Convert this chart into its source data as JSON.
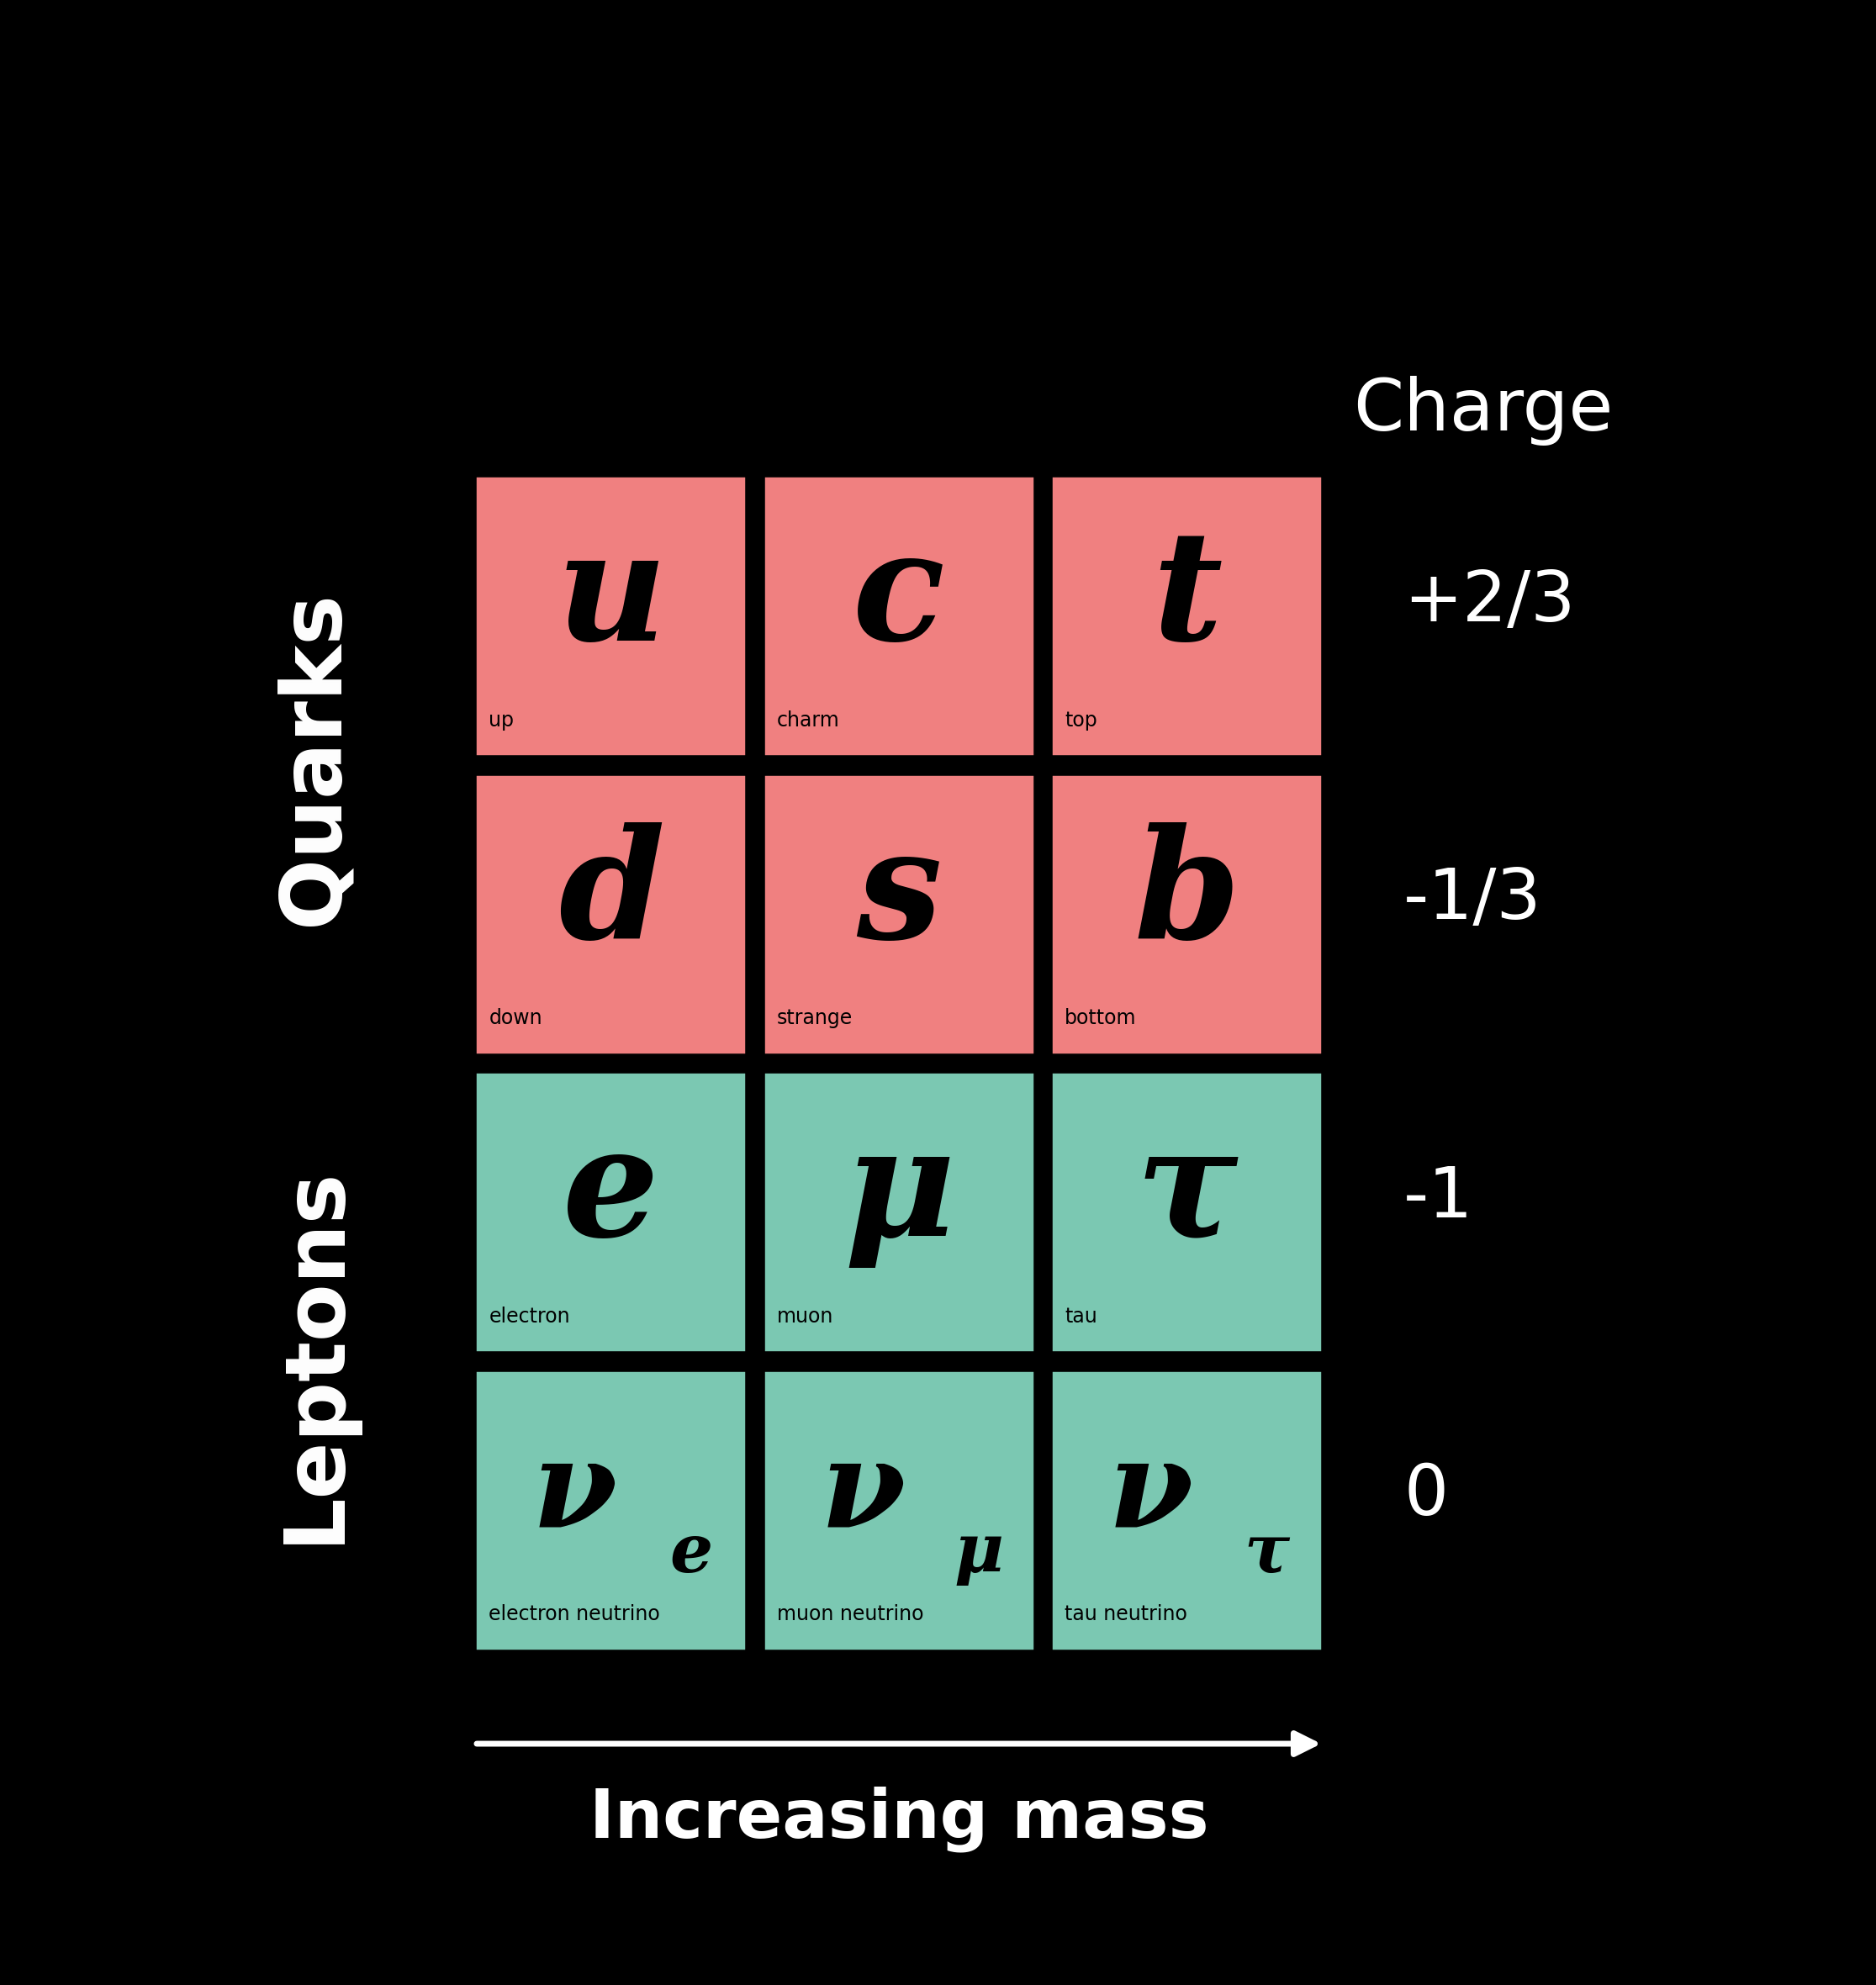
{
  "background_color": "#000000",
  "quark_color": "#F08080",
  "lepton_color": "#7BC8B2",
  "text_color_white": "#FFFFFF",
  "text_color_black": "#000000",
  "particles": [
    {
      "row": 0,
      "col": 0,
      "symbol": "u",
      "name": "up",
      "group": "quark"
    },
    {
      "row": 0,
      "col": 1,
      "symbol": "c",
      "name": "charm",
      "group": "quark"
    },
    {
      "row": 0,
      "col": 2,
      "symbol": "t",
      "name": "top",
      "group": "quark"
    },
    {
      "row": 1,
      "col": 0,
      "symbol": "d",
      "name": "down",
      "group": "quark"
    },
    {
      "row": 1,
      "col": 1,
      "symbol": "s",
      "name": "strange",
      "group": "quark"
    },
    {
      "row": 1,
      "col": 2,
      "symbol": "b",
      "name": "bottom",
      "group": "quark"
    },
    {
      "row": 2,
      "col": 0,
      "symbol": "e",
      "name": "electron",
      "group": "lepton"
    },
    {
      "row": 2,
      "col": 1,
      "symbol": "μ",
      "name": "muon",
      "group": "lepton"
    },
    {
      "row": 2,
      "col": 2,
      "symbol": "τ",
      "name": "tau",
      "group": "lepton"
    },
    {
      "row": 3,
      "col": 0,
      "symbol": "ν",
      "name": "electron neutrino",
      "group": "neutrino",
      "subscript": "e"
    },
    {
      "row": 3,
      "col": 1,
      "symbol": "ν",
      "name": "muon neutrino",
      "group": "neutrino",
      "subscript": "μ"
    },
    {
      "row": 3,
      "col": 2,
      "symbol": "ν",
      "name": "tau neutrino",
      "group": "neutrino",
      "subscript": "τ"
    }
  ],
  "charges": [
    "+2/3",
    "-1/3",
    "-1",
    "0"
  ],
  "mass_label": "Increasing mass",
  "charge_label": "Charge",
  "left_label_quarks": "Quarks",
  "left_label_leptons": "Leptons"
}
